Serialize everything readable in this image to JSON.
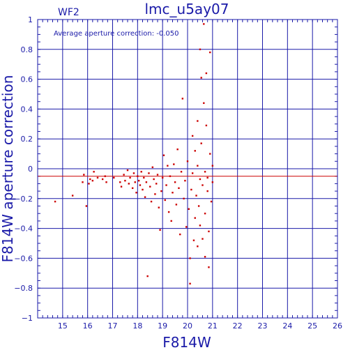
{
  "chart_data": {
    "type": "scatter",
    "title": "lmc_u5ay07",
    "panel_label": "WF2",
    "annotation": "Average aperture correction:  -0.050",
    "xlabel": "F814W",
    "ylabel": "F814W aperture correction",
    "xlim": [
      14,
      26
    ],
    "ylim": [
      -1,
      1
    ],
    "xticks": [
      15,
      16,
      17,
      18,
      19,
      20,
      21,
      22,
      23,
      24,
      25,
      26
    ],
    "yticks": [
      -1,
      -0.8,
      -0.6,
      -0.4,
      -0.2,
      0,
      0.2,
      0.4,
      0.6,
      0.8,
      1
    ],
    "ytick_labels": [
      "−1",
      "−0.8",
      "−0.6",
      "−0.4",
      "−0.2",
      "0",
      "0.2",
      "0.4",
      "0.6",
      "0.8",
      "1"
    ],
    "grid": true,
    "zero_line": 0,
    "average_line": -0.05,
    "colors": {
      "axes": "#1a1aa8",
      "grid": "#1a1aa8",
      "points": "#cc0000",
      "average_line": "#cc0000",
      "background": "#ffffff"
    },
    "points": [
      [
        14.7,
        -0.22
      ],
      [
        15.4,
        -0.18
      ],
      [
        15.8,
        -0.09
      ],
      [
        15.85,
        -0.04
      ],
      [
        15.95,
        -0.25
      ],
      [
        16.05,
        -0.1
      ],
      [
        16.1,
        -0.07
      ],
      [
        16.2,
        -0.08
      ],
      [
        16.25,
        -0.02
      ],
      [
        16.4,
        -0.06
      ],
      [
        16.6,
        -0.07
      ],
      [
        16.7,
        -0.05
      ],
      [
        16.75,
        -0.09
      ],
      [
        17.05,
        -0.06
      ],
      [
        17.3,
        -0.09
      ],
      [
        17.35,
        -0.12
      ],
      [
        17.45,
        -0.04
      ],
      [
        17.5,
        -0.08
      ],
      [
        17.6,
        -0.01
      ],
      [
        17.65,
        -0.1
      ],
      [
        17.7,
        -0.06
      ],
      [
        17.8,
        -0.13
      ],
      [
        17.85,
        -0.03
      ],
      [
        17.9,
        -0.09
      ],
      [
        17.95,
        -0.16
      ],
      [
        18.0,
        -0.05
      ],
      [
        18.05,
        -0.08
      ],
      [
        18.1,
        -0.11
      ],
      [
        18.15,
        -0.02
      ],
      [
        18.2,
        -0.14
      ],
      [
        18.25,
        -0.06
      ],
      [
        18.3,
        -0.19
      ],
      [
        18.35,
        -0.09
      ],
      [
        18.4,
        -0.72
      ],
      [
        18.45,
        -0.03
      ],
      [
        18.5,
        -0.12
      ],
      [
        18.55,
        -0.22
      ],
      [
        18.6,
        0.01
      ],
      [
        18.65,
        -0.07
      ],
      [
        18.7,
        -0.17
      ],
      [
        18.75,
        -0.1
      ],
      [
        18.8,
        -0.04
      ],
      [
        18.85,
        -0.26
      ],
      [
        18.9,
        -0.41
      ],
      [
        18.95,
        -0.15
      ],
      [
        19.0,
        -0.06
      ],
      [
        19.05,
        0.09
      ],
      [
        19.1,
        -0.21
      ],
      [
        19.15,
        -0.11
      ],
      [
        19.2,
        0.02
      ],
      [
        19.25,
        -0.29
      ],
      [
        19.3,
        -0.05
      ],
      [
        19.35,
        -0.35
      ],
      [
        19.4,
        -0.16
      ],
      [
        19.45,
        0.03
      ],
      [
        19.5,
        -0.09
      ],
      [
        19.55,
        -0.24
      ],
      [
        19.6,
        0.13
      ],
      [
        19.65,
        -0.13
      ],
      [
        19.7,
        -0.44
      ],
      [
        19.75,
        -0.02
      ],
      [
        19.8,
        0.47
      ],
      [
        19.85,
        -0.2
      ],
      [
        19.9,
        -0.08
      ],
      [
        19.95,
        -0.39
      ],
      [
        20.0,
        0.05
      ],
      [
        20.05,
        -0.27
      ],
      [
        20.1,
        -0.6
      ],
      [
        20.1,
        -0.77
      ],
      [
        20.15,
        -0.14
      ],
      [
        20.2,
        0.22
      ],
      [
        20.2,
        -0.03
      ],
      [
        20.25,
        -0.48
      ],
      [
        20.3,
        0.12
      ],
      [
        20.3,
        -0.33
      ],
      [
        20.35,
        -0.18
      ],
      [
        20.4,
        0.32
      ],
      [
        20.4,
        0.02
      ],
      [
        20.4,
        -0.52
      ],
      [
        20.45,
        -0.25
      ],
      [
        20.5,
        0.8
      ],
      [
        20.5,
        -0.07
      ],
      [
        20.5,
        -0.38
      ],
      [
        20.55,
        0.61
      ],
      [
        20.55,
        0.17
      ],
      [
        20.6,
        -0.11
      ],
      [
        20.6,
        -0.47
      ],
      [
        20.65,
        0.97
      ],
      [
        20.65,
        0.44
      ],
      [
        20.7,
        -0.02
      ],
      [
        20.7,
        -0.3
      ],
      [
        20.7,
        -0.59
      ],
      [
        20.75,
        0.64
      ],
      [
        20.75,
        0.29
      ],
      [
        20.8,
        -0.06
      ],
      [
        20.8,
        -0.15
      ],
      [
        20.85,
        -0.42
      ],
      [
        20.85,
        -0.66
      ],
      [
        20.9,
        0.78
      ],
      [
        20.9,
        0.1
      ],
      [
        20.95,
        -0.22
      ],
      [
        21.0,
        0.02
      ],
      [
        21.0,
        -0.09
      ]
    ]
  }
}
